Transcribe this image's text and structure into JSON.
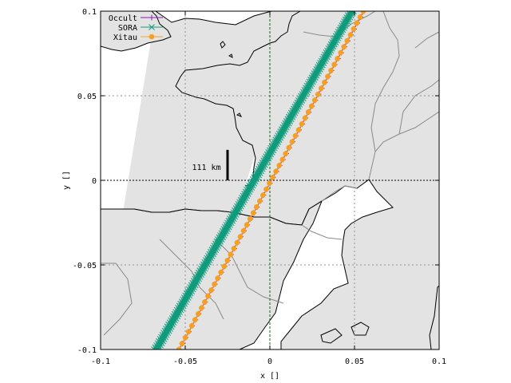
{
  "chart_data": {
    "type": "line",
    "title": "",
    "xlabel": "x []",
    "ylabel": "y []",
    "xlim": [
      -0.1,
      0.1
    ],
    "ylim": [
      -0.1,
      0.1
    ],
    "grid": true,
    "legend_placement": "top-left",
    "x_ticks": [
      {
        "value": -0.1,
        "label": "-0.1"
      },
      {
        "value": -0.05,
        "label": "-0.05"
      },
      {
        "value": 0,
        "label": "0"
      },
      {
        "value": 0.05,
        "label": "0.05"
      },
      {
        "value": 0.1,
        "label": "0.1"
      }
    ],
    "y_ticks": [
      {
        "value": -0.1,
        "label": "-0.1"
      },
      {
        "value": -0.05,
        "label": "-0.05"
      },
      {
        "value": 0,
        "label": "0"
      },
      {
        "value": 0.05,
        "label": "0.05"
      },
      {
        "value": 0.1,
        "label": "0.1"
      }
    ],
    "annotations": [
      {
        "text": "111 km",
        "x": -0.046,
        "y": 0.008
      }
    ],
    "scale_bar": {
      "x": -0.025,
      "y1": 0.0,
      "y2": 0.018
    },
    "series": [
      {
        "name": "Occult",
        "color": "#8b1ab4",
        "marker": "plus",
        "x": [
          -0.0536,
          0.0555
        ],
        "y": [
          -0.1,
          0.1
        ]
      },
      {
        "name": "SORA",
        "color": "#109b7c",
        "marker": "cross",
        "x": [
          -0.0684,
          0.0475
        ],
        "y": [
          -0.1,
          0.1
        ]
      },
      {
        "name": "SORA",
        "color": "#109b7c",
        "marker": "cross",
        "x": [
          -0.0672,
          0.0485
        ],
        "y": [
          -0.1,
          0.1
        ]
      },
      {
        "name": "SORA",
        "color": "#109b7c",
        "marker": "cross",
        "x": [
          -0.066,
          0.0495
        ],
        "y": [
          -0.1,
          0.1
        ]
      },
      {
        "name": "Xitau",
        "color": "#f7a020",
        "marker": "filled-circle",
        "x": [
          -0.0538,
          0.0552
        ],
        "y": [
          -0.1,
          0.1
        ]
      }
    ],
    "x_zero_line_color": "#0a6e0a",
    "y_zero_line_color": "#000000",
    "land_color": "#e3e3e3"
  }
}
